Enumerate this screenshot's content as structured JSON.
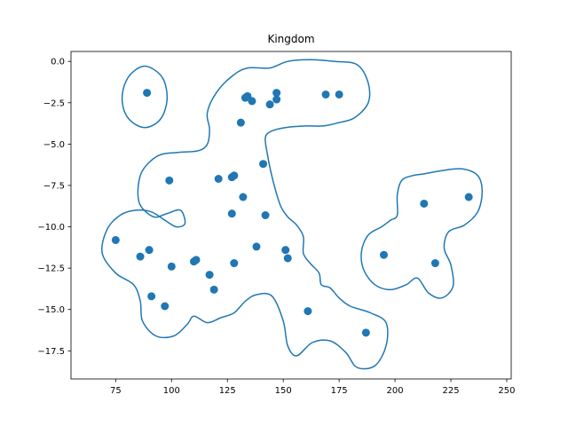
{
  "chart_data": {
    "type": "scatter",
    "title": "Kingdom",
    "xlabel": "",
    "ylabel": "",
    "xlim": [
      55,
      252
    ],
    "ylim": [
      -19.2,
      0.6
    ],
    "xticks": [
      75,
      100,
      125,
      150,
      175,
      200,
      225,
      250
    ],
    "xtick_labels": [
      "75",
      "100",
      "125",
      "150",
      "175",
      "200",
      "225",
      "250"
    ],
    "yticks": [
      0.0,
      -2.5,
      -5.0,
      -7.5,
      -10.0,
      -12.5,
      -15.0,
      -17.5
    ],
    "ytick_labels": [
      "0.0",
      "−2.5",
      "−5.0",
      "−7.5",
      "−10.0",
      "−12.5",
      "−15.0",
      "−17.5"
    ],
    "grid": false,
    "color": "#1f77b4",
    "points": [
      {
        "x": 89,
        "y": -1.9
      },
      {
        "x": 133,
        "y": -2.2
      },
      {
        "x": 134,
        "y": -2.1
      },
      {
        "x": 136,
        "y": -2.4
      },
      {
        "x": 144,
        "y": -2.6
      },
      {
        "x": 147,
        "y": -2.3
      },
      {
        "x": 147,
        "y": -1.9
      },
      {
        "x": 169,
        "y": -2.0
      },
      {
        "x": 175,
        "y": -2.0
      },
      {
        "x": 131,
        "y": -3.7
      },
      {
        "x": 141,
        "y": -6.2
      },
      {
        "x": 99,
        "y": -7.2
      },
      {
        "x": 121,
        "y": -7.1
      },
      {
        "x": 127,
        "y": -7.0
      },
      {
        "x": 128,
        "y": -6.9
      },
      {
        "x": 132,
        "y": -8.2
      },
      {
        "x": 127,
        "y": -9.2
      },
      {
        "x": 142,
        "y": -9.3
      },
      {
        "x": 75,
        "y": -10.8
      },
      {
        "x": 86,
        "y": -11.8
      },
      {
        "x": 90,
        "y": -11.4
      },
      {
        "x": 100,
        "y": -12.4
      },
      {
        "x": 110,
        "y": -12.1
      },
      {
        "x": 111,
        "y": -12.0
      },
      {
        "x": 117,
        "y": -12.9
      },
      {
        "x": 128,
        "y": -12.2
      },
      {
        "x": 138,
        "y": -11.2
      },
      {
        "x": 151,
        "y": -11.4
      },
      {
        "x": 152,
        "y": -11.9
      },
      {
        "x": 119,
        "y": -13.8
      },
      {
        "x": 91,
        "y": -14.2
      },
      {
        "x": 97,
        "y": -14.8
      },
      {
        "x": 161,
        "y": -15.1
      },
      {
        "x": 187,
        "y": -16.4
      },
      {
        "x": 195,
        "y": -11.7
      },
      {
        "x": 213,
        "y": -8.6
      },
      {
        "x": 218,
        "y": -12.2
      },
      {
        "x": 233,
        "y": -8.2
      }
    ],
    "contours": [
      [
        [
          89,
          -0.3
        ],
        [
          83,
          -0.6
        ],
        [
          79,
          -1.4
        ],
        [
          78,
          -2.5
        ],
        [
          81,
          -3.5
        ],
        [
          88,
          -4.0
        ],
        [
          95,
          -3.5
        ],
        [
          98,
          -2.3
        ],
        [
          96,
          -1.0
        ],
        [
          89,
          -0.3
        ]
      ],
      [
        [
          152,
          0.0
        ],
        [
          144,
          -0.4
        ],
        [
          134,
          -0.4
        ],
        [
          127,
          -0.9
        ],
        [
          120,
          -1.9
        ],
        [
          116,
          -3.1
        ],
        [
          117,
          -4.1
        ],
        [
          116,
          -5.0
        ],
        [
          112,
          -5.4
        ],
        [
          103,
          -5.5
        ],
        [
          94,
          -5.7
        ],
        [
          87,
          -6.6
        ],
        [
          85,
          -7.7
        ],
        [
          86,
          -8.7
        ],
        [
          92,
          -9.4
        ],
        [
          98,
          -9.2
        ],
        [
          104,
          -9.0
        ],
        [
          106,
          -9.8
        ],
        [
          102,
          -10.0
        ],
        [
          97,
          -9.6
        ],
        [
          91,
          -9.1
        ],
        [
          84,
          -9.0
        ],
        [
          77,
          -9.3
        ],
        [
          71,
          -10.2
        ],
        [
          69,
          -11.6
        ],
        [
          75,
          -12.8
        ],
        [
          83,
          -13.5
        ],
        [
          86,
          -14.5
        ],
        [
          87,
          -15.7
        ],
        [
          93,
          -16.6
        ],
        [
          101,
          -16.6
        ],
        [
          107,
          -15.9
        ],
        [
          110,
          -15.4
        ],
        [
          116,
          -15.8
        ],
        [
          122,
          -15.5
        ],
        [
          128,
          -15.2
        ],
        [
          133,
          -14.5
        ],
        [
          138,
          -14.1
        ],
        [
          145,
          -14.2
        ],
        [
          150,
          -15.7
        ],
        [
          152,
          -17.2
        ],
        [
          156,
          -17.8
        ],
        [
          163,
          -17.0
        ],
        [
          171,
          -16.9
        ],
        [
          178,
          -17.6
        ],
        [
          183,
          -18.5
        ],
        [
          191,
          -18.4
        ],
        [
          196,
          -17.2
        ],
        [
          196,
          -15.8
        ],
        [
          189,
          -15.2
        ],
        [
          180,
          -14.8
        ],
        [
          175,
          -14.3
        ],
        [
          171,
          -13.7
        ],
        [
          167,
          -13.5
        ],
        [
          166,
          -12.8
        ],
        [
          162,
          -12.2
        ],
        [
          159,
          -11.6
        ],
        [
          159,
          -10.6
        ],
        [
          156,
          -9.9
        ],
        [
          152,
          -9.4
        ],
        [
          149,
          -8.8
        ],
        [
          147,
          -8.0
        ],
        [
          145,
          -7.0
        ],
        [
          143,
          -5.7
        ],
        [
          142,
          -4.6
        ],
        [
          145,
          -4.2
        ],
        [
          151,
          -4.0
        ],
        [
          160,
          -3.9
        ],
        [
          168,
          -3.9
        ],
        [
          175,
          -3.7
        ],
        [
          182,
          -3.4
        ],
        [
          188,
          -2.5
        ],
        [
          188,
          -1.3
        ],
        [
          183,
          -0.2
        ],
        [
          173,
          0.0
        ],
        [
          162,
          0.1
        ],
        [
          152,
          0.0
        ]
      ],
      [
        [
          213,
          -6.8
        ],
        [
          221,
          -6.6
        ],
        [
          230,
          -6.5
        ],
        [
          237,
          -6.9
        ],
        [
          239,
          -7.9
        ],
        [
          237,
          -9.1
        ],
        [
          231,
          -9.9
        ],
        [
          224,
          -10.3
        ],
        [
          222,
          -11.3
        ],
        [
          225,
          -12.3
        ],
        [
          226,
          -13.6
        ],
        [
          221,
          -14.3
        ],
        [
          215,
          -14.0
        ],
        [
          210,
          -13.1
        ],
        [
          205,
          -13.5
        ],
        [
          198,
          -13.8
        ],
        [
          191,
          -13.5
        ],
        [
          186,
          -12.6
        ],
        [
          185,
          -11.5
        ],
        [
          188,
          -10.5
        ],
        [
          194,
          -10.0
        ],
        [
          198,
          -9.6
        ],
        [
          201,
          -9.3
        ],
        [
          201,
          -8.1
        ],
        [
          203,
          -7.2
        ],
        [
          208,
          -6.9
        ],
        [
          213,
          -6.8
        ]
      ]
    ]
  }
}
